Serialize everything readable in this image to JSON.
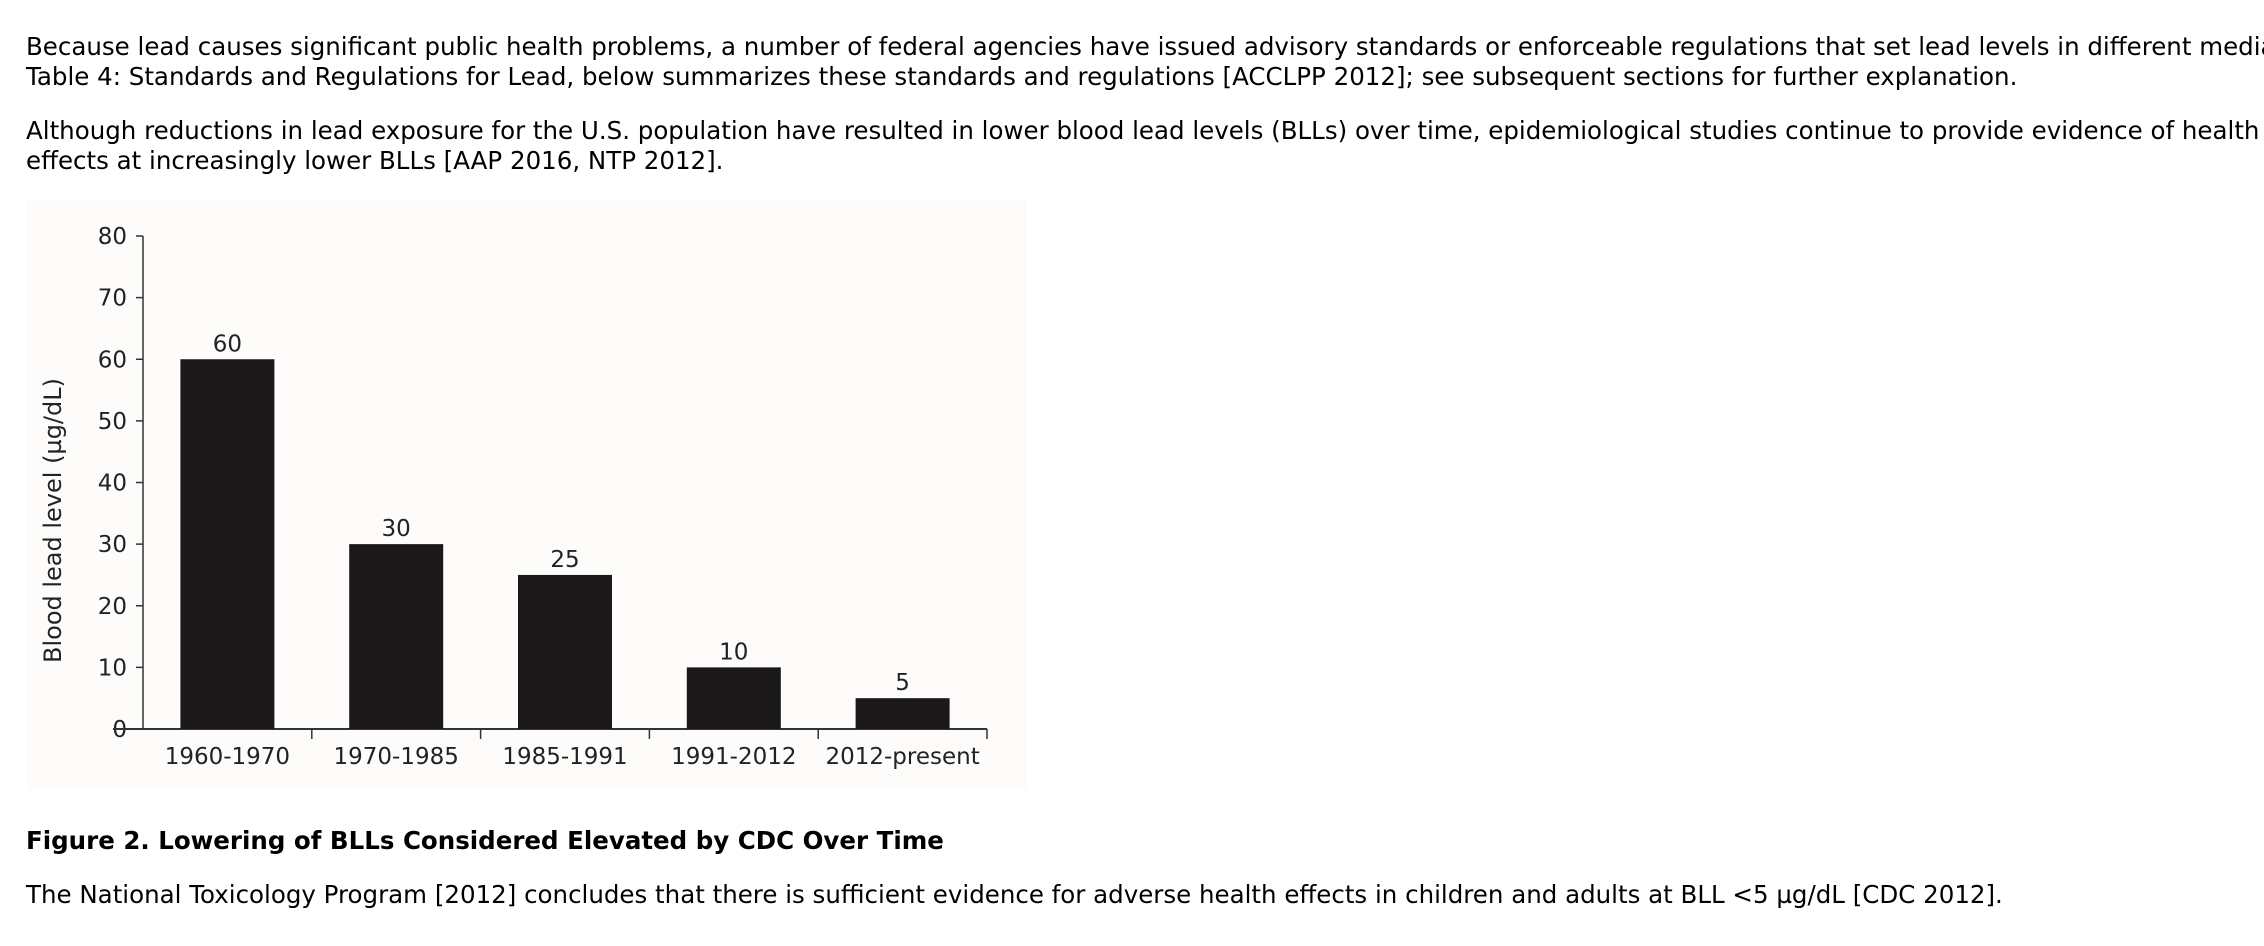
{
  "paragraphs": {
    "p1": {
      "line1": "Because lead causes significant public health problems, a number of federal agencies have issued advisory standards or enforceable regulations that set lead levels in different media.",
      "line2": "Table 4: Standards and Regulations for Lead, below summarizes these standards and regulations [ACCLPP 2012]; see subsequent sections for further explanation."
    },
    "p2": {
      "line1": "Although reductions in lead exposure for the U.S. population have resulted in lower blood lead levels (BLLs) over time, epidemiological studies continue to provide evidence of health",
      "line2": "effects at increasingly lower BLLs [AAP 2016, NTP 2012]."
    },
    "p3": {
      "line1": "The National Toxicology Program [2012] concludes that there is sufficient evidence for adverse health effects in children and adults at BLL <5 µg/dL [CDC 2012]."
    }
  },
  "figure": {
    "caption": "Figure 2. Lowering of BLLs Considered Elevated by CDC Over Time"
  },
  "chart_data": {
    "type": "bar",
    "categories": [
      "1960-1970",
      "1970-1985",
      "1985-1991",
      "1991-2012",
      "2012-present"
    ],
    "values": [
      60,
      30,
      25,
      10,
      5
    ],
    "data_labels": [
      "60",
      "30",
      "25",
      "10",
      "5"
    ],
    "title": "",
    "xlabel": "",
    "ylabel": "Blood lead level (µg/dL)",
    "ylim": [
      0,
      80
    ],
    "yticks": [
      0,
      10,
      20,
      30,
      40,
      50,
      60,
      70,
      80
    ],
    "ytick_labels": [
      "0",
      "10",
      "20",
      "30",
      "40",
      "50",
      "60",
      "70",
      "80"
    ],
    "grid": false,
    "legend": "none",
    "bar_color": "#1a1819",
    "axis_color": "#333333"
  }
}
